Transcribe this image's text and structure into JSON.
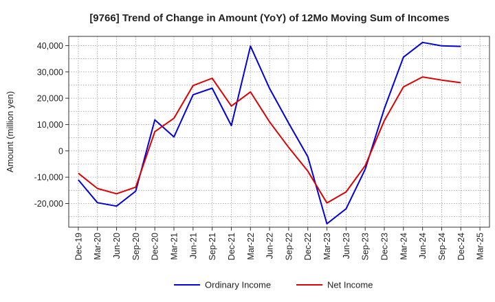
{
  "chart_data": {
    "type": "line",
    "title": "[9766]  Trend of Change in Amount (YoY) of 12Mo Moving Sum of Incomes",
    "ylabel": "Amount (million yen)",
    "xlabel": "",
    "ylim": [
      -29000,
      43500
    ],
    "yticks": [
      -20000,
      -10000,
      0,
      10000,
      20000,
      30000,
      40000
    ],
    "ytick_labels": [
      "-20,000",
      "-10,000",
      "0",
      "10,000",
      "20,000",
      "30,000",
      "40,000"
    ],
    "categories": [
      "Dec-19",
      "Mar-20",
      "Jun-20",
      "Sep-20",
      "Dec-20",
      "Mar-21",
      "Jun-21",
      "Sep-21",
      "Dec-21",
      "Mar-22",
      "Jun-22",
      "Sep-22",
      "Dec-22",
      "Mar-23",
      "Jun-23",
      "Sep-23",
      "Dec-23",
      "Mar-24",
      "Jun-24",
      "Sep-24",
      "Dec-24",
      "Mar-25"
    ],
    "grid": true,
    "legend_position": "bottom",
    "series": [
      {
        "name": "Ordinary Income",
        "color": "#0000dd",
        "values": [
          -11000,
          -19700,
          -21000,
          -15300,
          11800,
          5300,
          21300,
          23800,
          9600,
          39800,
          23700,
          10500,
          -2200,
          -27700,
          -22000,
          -7000,
          16000,
          35600,
          41200,
          39900,
          39700,
          null
        ]
      },
      {
        "name": "Net Income",
        "color": "#dd0000",
        "values": [
          -8500,
          -14300,
          -16300,
          -13800,
          7300,
          12400,
          24800,
          27600,
          17000,
          22400,
          11000,
          1300,
          -7700,
          -19800,
          -15600,
          -5600,
          11500,
          24300,
          28100,
          26900,
          25900,
          null
        ]
      }
    ]
  }
}
